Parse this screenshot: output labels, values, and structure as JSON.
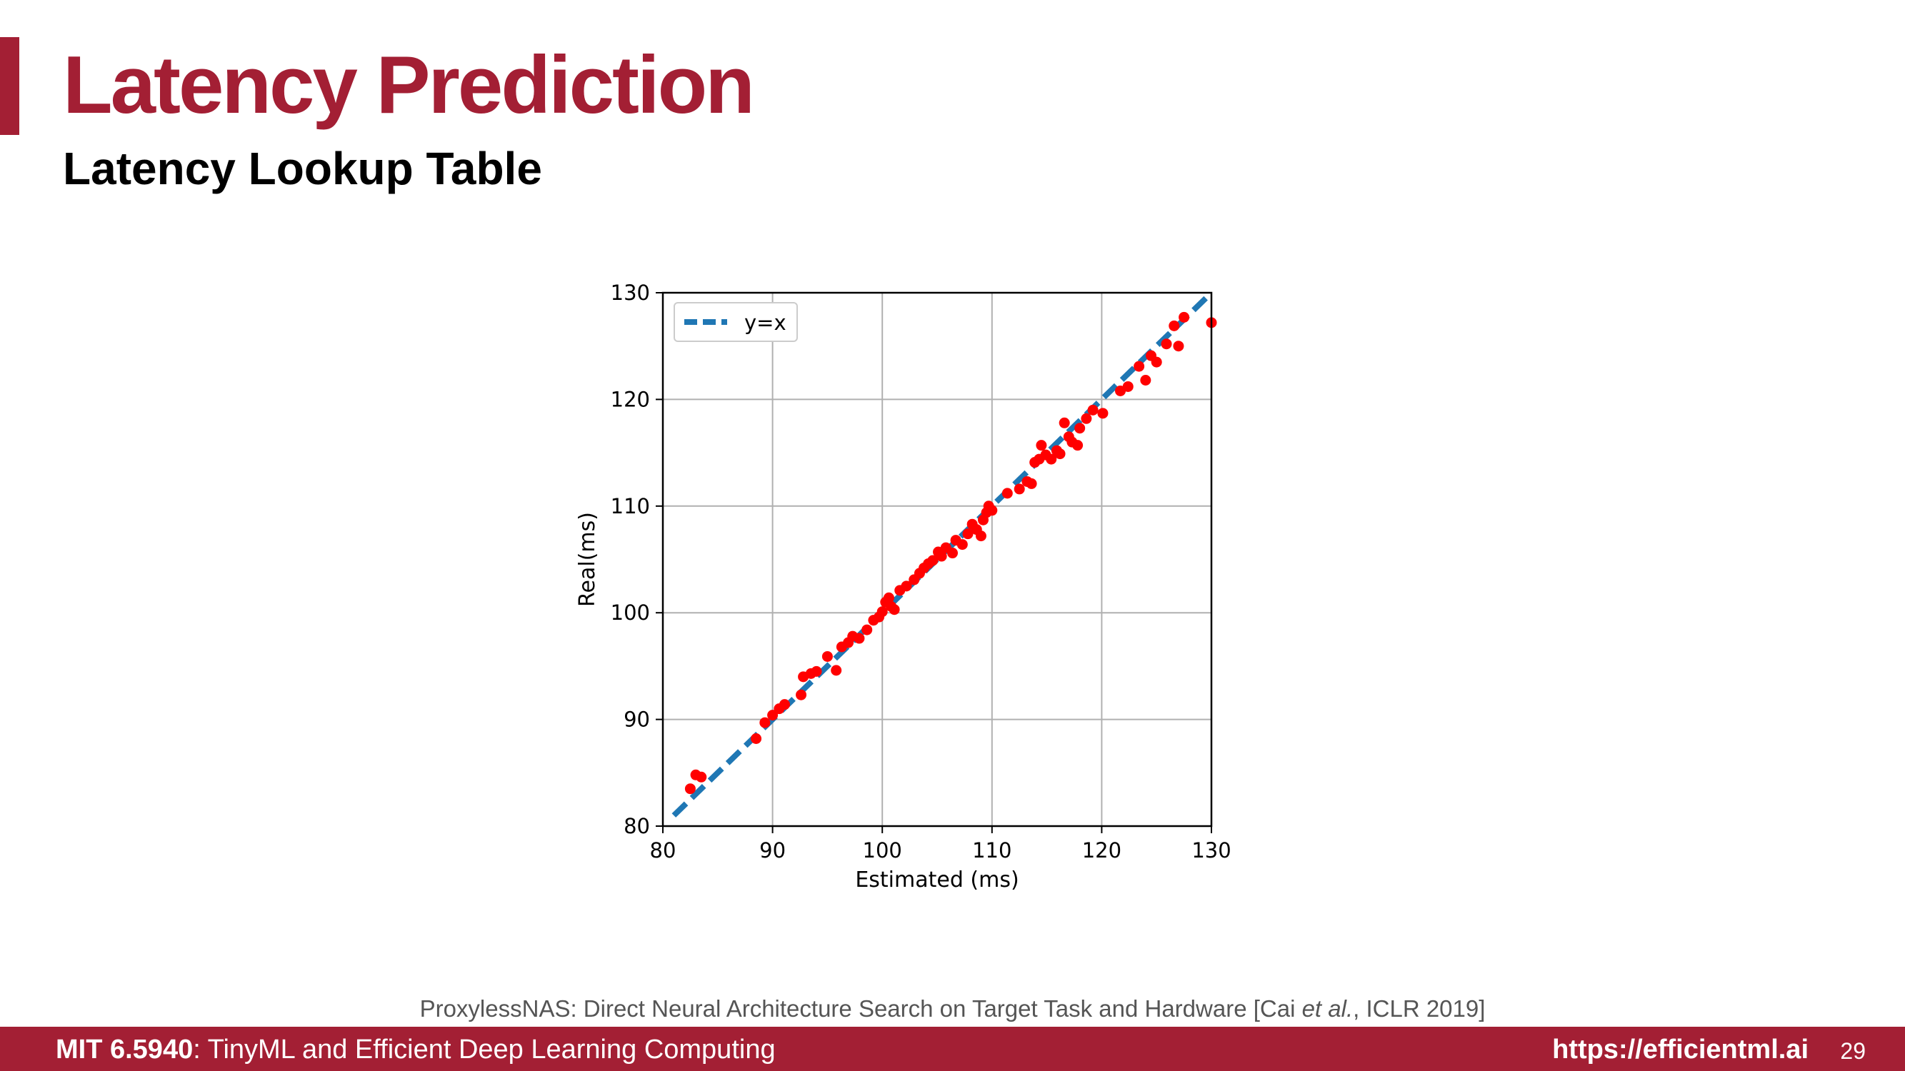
{
  "slide": {
    "title": "Latency Prediction",
    "subtitle": "Latency Lookup Table",
    "citation_pre": "ProxylessNAS: Direct Neural Architecture Search on Target Task and Hardware [Cai ",
    "citation_em": "et al.",
    "citation_post": ", ICLR 2019]"
  },
  "footer": {
    "course_code": "MIT 6.5940",
    "course_name": ": TinyML and Efficient Deep Learning Computing",
    "url": "https://efficientml.ai",
    "page": "29"
  },
  "colors": {
    "accent": "#a31f34",
    "points": "#ff0000",
    "reference_line": "#1f77b4"
  },
  "chart_data": {
    "type": "scatter",
    "xlabel": "Estimated (ms)",
    "ylabel": "Real(ms)",
    "xlim": [
      80,
      130
    ],
    "ylim": [
      80,
      130
    ],
    "xticks": [
      80,
      90,
      100,
      110,
      120,
      130
    ],
    "yticks": [
      80,
      90,
      100,
      110,
      120,
      130
    ],
    "grid": true,
    "legend_position": "top-left",
    "reference_line": {
      "label": "y=x",
      "style": "dashed",
      "from": [
        81,
        81
      ],
      "to": [
        130,
        130
      ]
    },
    "points": [
      [
        82.5,
        83.5
      ],
      [
        83.0,
        84.8
      ],
      [
        83.5,
        84.6
      ],
      [
        88.5,
        88.2
      ],
      [
        89.3,
        89.7
      ],
      [
        90.0,
        90.4
      ],
      [
        90.6,
        91.0
      ],
      [
        91.1,
        91.4
      ],
      [
        92.6,
        92.3
      ],
      [
        92.8,
        94.0
      ],
      [
        93.5,
        94.3
      ],
      [
        94.0,
        94.5
      ],
      [
        95.0,
        95.9
      ],
      [
        95.8,
        94.6
      ],
      [
        96.3,
        96.8
      ],
      [
        96.9,
        97.2
      ],
      [
        97.3,
        97.8
      ],
      [
        97.9,
        97.6
      ],
      [
        98.6,
        98.4
      ],
      [
        99.2,
        99.3
      ],
      [
        99.7,
        99.6
      ],
      [
        100.0,
        100.1
      ],
      [
        100.3,
        101.0
      ],
      [
        100.6,
        101.4
      ],
      [
        100.8,
        100.6
      ],
      [
        101.1,
        100.3
      ],
      [
        101.6,
        102.1
      ],
      [
        102.2,
        102.5
      ],
      [
        102.9,
        103.1
      ],
      [
        103.4,
        103.7
      ],
      [
        103.8,
        104.2
      ],
      [
        104.2,
        104.6
      ],
      [
        104.6,
        104.9
      ],
      [
        105.1,
        105.7
      ],
      [
        105.4,
        105.3
      ],
      [
        105.8,
        106.1
      ],
      [
        106.4,
        105.6
      ],
      [
        106.7,
        106.8
      ],
      [
        107.3,
        106.4
      ],
      [
        107.8,
        107.4
      ],
      [
        108.2,
        108.3
      ],
      [
        108.6,
        107.8
      ],
      [
        109.0,
        107.2
      ],
      [
        109.2,
        108.7
      ],
      [
        109.5,
        109.4
      ],
      [
        109.7,
        110.0
      ],
      [
        110.0,
        109.6
      ],
      [
        111.4,
        111.2
      ],
      [
        112.5,
        111.6
      ],
      [
        113.2,
        112.3
      ],
      [
        113.6,
        112.1
      ],
      [
        113.9,
        114.1
      ],
      [
        114.3,
        114.4
      ],
      [
        114.5,
        115.7
      ],
      [
        114.9,
        114.8
      ],
      [
        115.4,
        114.4
      ],
      [
        115.9,
        115.2
      ],
      [
        116.2,
        114.9
      ],
      [
        116.6,
        117.8
      ],
      [
        117.0,
        116.5
      ],
      [
        117.3,
        116.0
      ],
      [
        117.8,
        115.7
      ],
      [
        118.0,
        117.3
      ],
      [
        118.6,
        118.2
      ],
      [
        119.2,
        119.0
      ],
      [
        120.1,
        118.7
      ],
      [
        121.7,
        120.8
      ],
      [
        122.4,
        121.2
      ],
      [
        123.4,
        123.1
      ],
      [
        124.0,
        121.8
      ],
      [
        124.5,
        124.1
      ],
      [
        125.0,
        123.5
      ],
      [
        125.9,
        125.2
      ],
      [
        126.6,
        126.9
      ],
      [
        127.0,
        125.0
      ],
      [
        127.5,
        127.7
      ],
      [
        130.0,
        127.2
      ]
    ]
  }
}
